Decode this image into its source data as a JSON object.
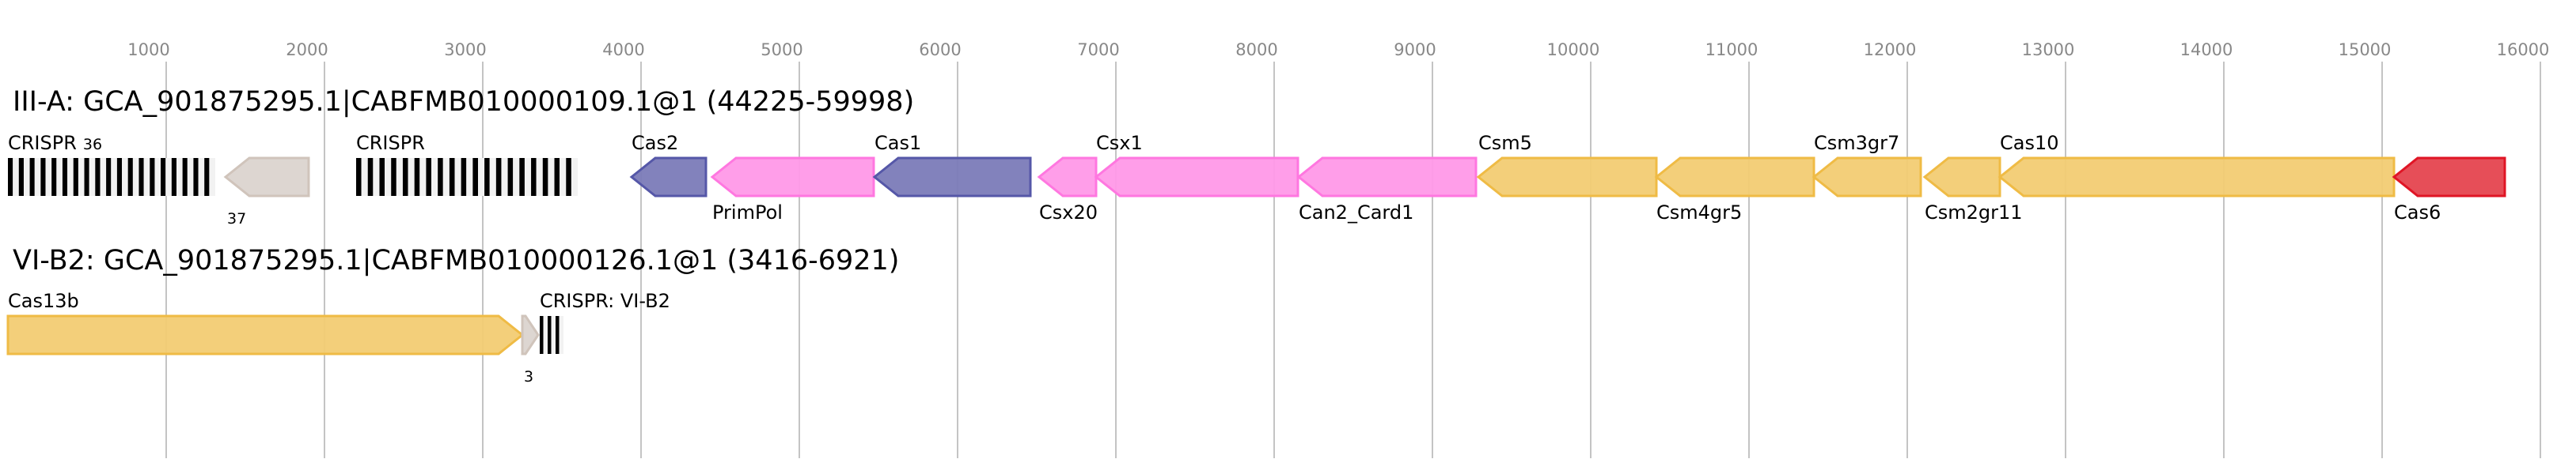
{
  "axis": {
    "ticks": [
      1000,
      2000,
      3000,
      4000,
      5000,
      6000,
      7000,
      8000,
      9000,
      10000,
      11000,
      12000,
      13000,
      14000,
      15000,
      16000
    ]
  },
  "colors": {
    "cas_blue": "#7b7bb8",
    "cas_blue_stroke": "#5557a8",
    "pink": "#ff99e8",
    "pink_stroke": "#ff77e0",
    "yellow": "#f2cc73",
    "yellow_stroke": "#efbb45",
    "red": "#e5454f",
    "red_stroke": "#e01525",
    "gray": "#dbd4cf",
    "gray_stroke": "#d0c4bb"
  },
  "loci": [
    {
      "title": "III-A: GCA_901875295.1|CABFMB010000109.1@1 (44225-59998)",
      "features": [
        {
          "type": "crispr",
          "label": "CRISPR",
          "start": 0,
          "end": 1310,
          "bars": 19,
          "count": "36",
          "label_pos": "above"
        },
        {
          "type": "gene",
          "label": "",
          "start": 1375,
          "end": 1900,
          "strand": "-",
          "color": "gray",
          "count": "37"
        },
        {
          "type": "crispr",
          "label": "CRISPR",
          "start": 2200,
          "end": 3600,
          "bars": 19,
          "label_pos": "above"
        },
        {
          "type": "gene",
          "label": "Cas2",
          "start": 3940,
          "end": 4410,
          "strand": "-",
          "color": "cas_blue",
          "label_pos": "above"
        },
        {
          "type": "gene",
          "label": "PrimPol",
          "start": 4450,
          "end": 5470,
          "strand": "-",
          "color": "pink",
          "label_pos": "below"
        },
        {
          "type": "gene",
          "label": "Cas1",
          "start": 5475,
          "end": 6460,
          "strand": "-",
          "color": "cas_blue",
          "label_pos": "above"
        },
        {
          "type": "gene",
          "label": "Csx20",
          "start": 6515,
          "end": 6875,
          "strand": "-",
          "color": "pink",
          "label_pos": "below"
        },
        {
          "type": "gene",
          "label": "Csx1",
          "start": 6875,
          "end": 8150,
          "strand": "-",
          "color": "pink",
          "label_pos": "above"
        },
        {
          "type": "gene",
          "label": "Can2_Card1",
          "start": 8155,
          "end": 9275,
          "strand": "-",
          "color": "pink",
          "label_pos": "below"
        },
        {
          "type": "gene",
          "label": "Csm5",
          "start": 9290,
          "end": 10415,
          "strand": "-",
          "color": "yellow",
          "label_pos": "above"
        },
        {
          "type": "gene",
          "label": "Csm4gr5",
          "start": 10415,
          "end": 11410,
          "strand": "-",
          "color": "yellow",
          "label_pos": "below"
        },
        {
          "type": "gene",
          "label": "Csm3gr7",
          "start": 11410,
          "end": 12085,
          "strand": "-",
          "color": "yellow",
          "label_pos": "above"
        },
        {
          "type": "gene",
          "label": "Csm2gr11",
          "start": 12110,
          "end": 12585,
          "strand": "-",
          "color": "yellow",
          "label_pos": "below"
        },
        {
          "type": "gene",
          "label": "Cas10",
          "start": 12585,
          "end": 15075,
          "strand": "-",
          "color": "yellow",
          "label_pos": "above"
        },
        {
          "type": "gene",
          "label": "Cas6",
          "start": 15075,
          "end": 15775,
          "strand": "-",
          "color": "red",
          "label_pos": "below"
        }
      ]
    },
    {
      "title": "VI-B2: GCA_901875295.1|CABFMB010000126.1@1 (3416-6921)",
      "features": [
        {
          "type": "gene",
          "label": "Cas13b",
          "start": 0,
          "end": 3250,
          "strand": "+",
          "color": "yellow",
          "label_pos": "above"
        },
        {
          "type": "gene",
          "label": "",
          "start": 3250,
          "end": 3350,
          "strand": "+",
          "color": "gray",
          "count": "3"
        },
        {
          "type": "crispr",
          "label": "CRISPR: VI-B2",
          "start": 3360,
          "end": 3510,
          "bars": 3,
          "label_pos": "above"
        }
      ]
    }
  ]
}
